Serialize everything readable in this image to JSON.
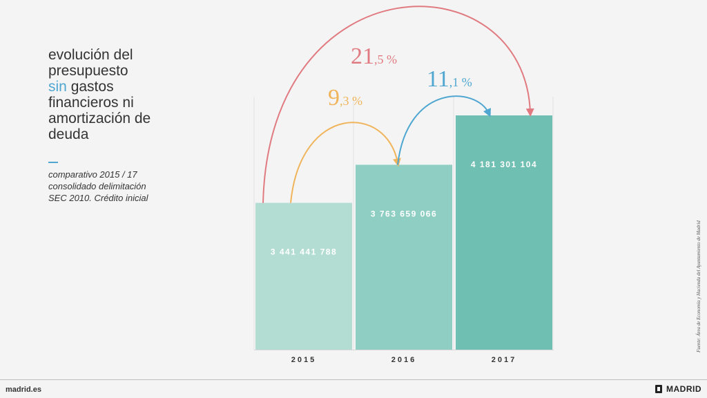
{
  "title": {
    "line1": "evolución del",
    "line2": "presupuesto",
    "line3_highlight": "sin",
    "line3_rest": " gastos",
    "line4": "financieros ni",
    "line5": "amortización de",
    "line6": "deuda"
  },
  "subtitle": {
    "line1": "comparativo 2015 / 17",
    "line2": "consolidado delimitación",
    "line3": "SEC 2010. Crédito inicial"
  },
  "source": "Fuente: Área de Economía y Hacienda del Ayuntamiento de Madrid",
  "footer": {
    "website": "madrid.es",
    "brand": "MADRID"
  },
  "colors": {
    "bar_2015": "#b3ddd3",
    "bar_2016": "#8fcfc3",
    "bar_2017": "#6fbfb2",
    "arc_red": "#e07a80",
    "arc_orange": "#f0b45a",
    "arc_blue": "#4ea6d1",
    "highlight": "#4ea6d1"
  },
  "chart_data": {
    "type": "bar",
    "categories": [
      "2015",
      "2016",
      "2017"
    ],
    "values": [
      3441441788,
      3763659066,
      4181301104
    ],
    "value_labels": [
      "3 441 441 788",
      "3 763 659 066",
      "4 181 301 104"
    ],
    "annotations": [
      {
        "from": "2015",
        "to": "2016",
        "label_int": "9",
        "label_dec": ",3 %",
        "color": "#f0b45a"
      },
      {
        "from": "2016",
        "to": "2017",
        "label_int": "11",
        "label_dec": ",1 %",
        "color": "#4ea6d1"
      },
      {
        "from": "2015",
        "to": "2017",
        "label_int": "21",
        "label_dec": ",5 %",
        "color": "#e07a80"
      }
    ]
  }
}
